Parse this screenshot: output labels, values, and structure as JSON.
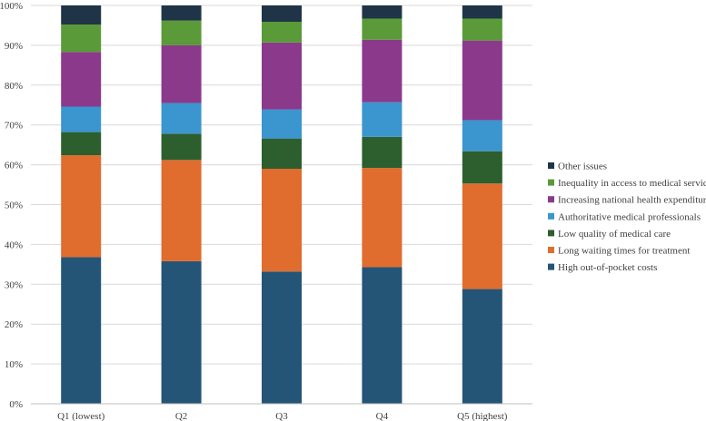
{
  "chart_data": {
    "type": "stacked-bar-100",
    "title": "",
    "xlabel": "",
    "ylabel": "",
    "ylim": [
      0,
      100
    ],
    "yticks": [
      "0%",
      "10%",
      "20%",
      "30%",
      "40%",
      "50%",
      "60%",
      "70%",
      "80%",
      "90%",
      "100%"
    ],
    "grid": true,
    "legend_position": "right",
    "categories": [
      "Q1 (lowest)",
      "Q2",
      "Q3",
      "Q4",
      "Q5 (highest)"
    ],
    "series": [
      {
        "name": "High out-of-pocket costs",
        "color": "#245576",
        "values": [
          36.8,
          35.8,
          33.2,
          34.3,
          28.8
        ]
      },
      {
        "name": "Long waiting times for treatment",
        "color": "#e06c2e",
        "values": [
          25.6,
          25.4,
          25.8,
          24.9,
          26.5
        ]
      },
      {
        "name": "Low quality of medical care",
        "color": "#2d5f2e",
        "values": [
          5.8,
          6.6,
          7.6,
          7.8,
          8.1
        ]
      },
      {
        "name": "Authoritative medical professionals",
        "color": "#3b95cf",
        "values": [
          6.4,
          7.7,
          7.3,
          8.7,
          7.8
        ]
      },
      {
        "name": "Increasing national health expenditure",
        "color": "#8b3a8b",
        "values": [
          13.7,
          14.5,
          16.8,
          15.7,
          20.0
        ]
      },
      {
        "name": "Inequality in access to medical services",
        "color": "#5a9a38",
        "values": [
          6.9,
          6.2,
          5.2,
          5.3,
          5.5
        ]
      },
      {
        "name": "Other issues",
        "color": "#1f3547",
        "values": [
          4.8,
          3.8,
          4.1,
          3.3,
          3.3
        ]
      }
    ],
    "legend_order": [
      "Other issues",
      "Inequality in access to medical services",
      "Increasing national health expenditure",
      "Authoritative medical professionals",
      "Low quality of medical care",
      "Long waiting times for treatment",
      "High out-of-pocket costs"
    ]
  }
}
